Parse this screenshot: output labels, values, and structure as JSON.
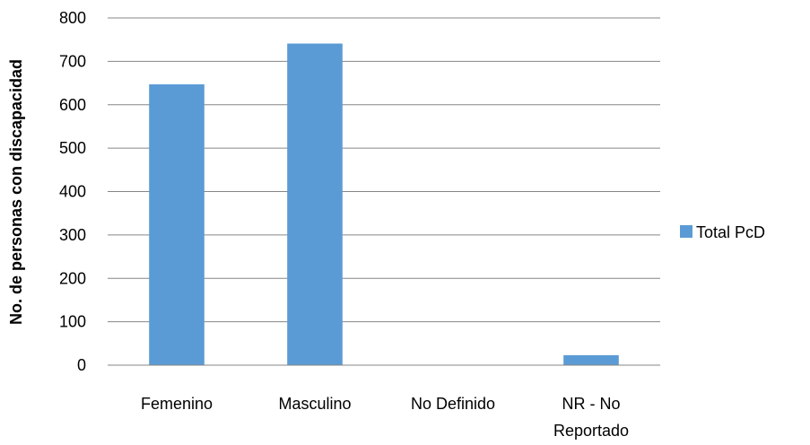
{
  "chart_data": {
    "type": "bar",
    "categories": [
      "Femenino",
      "Masculino",
      "No Definido",
      "NR - No Reportado"
    ],
    "category_lines": [
      [
        "Femenino"
      ],
      [
        "Masculino"
      ],
      [
        "No Definido"
      ],
      [
        "NR - No",
        "Reportado"
      ]
    ],
    "series": [
      {
        "name": "Total PcD",
        "values": [
          647,
          741,
          0,
          23
        ],
        "color": "#5B9BD5"
      }
    ],
    "ylabel": "No. de personas con discapacidad",
    "xlabel": "",
    "ylim": [
      0,
      800
    ],
    "yticks": [
      0,
      100,
      200,
      300,
      400,
      500,
      600,
      700,
      800
    ],
    "grid": true,
    "legend_position": "right"
  }
}
